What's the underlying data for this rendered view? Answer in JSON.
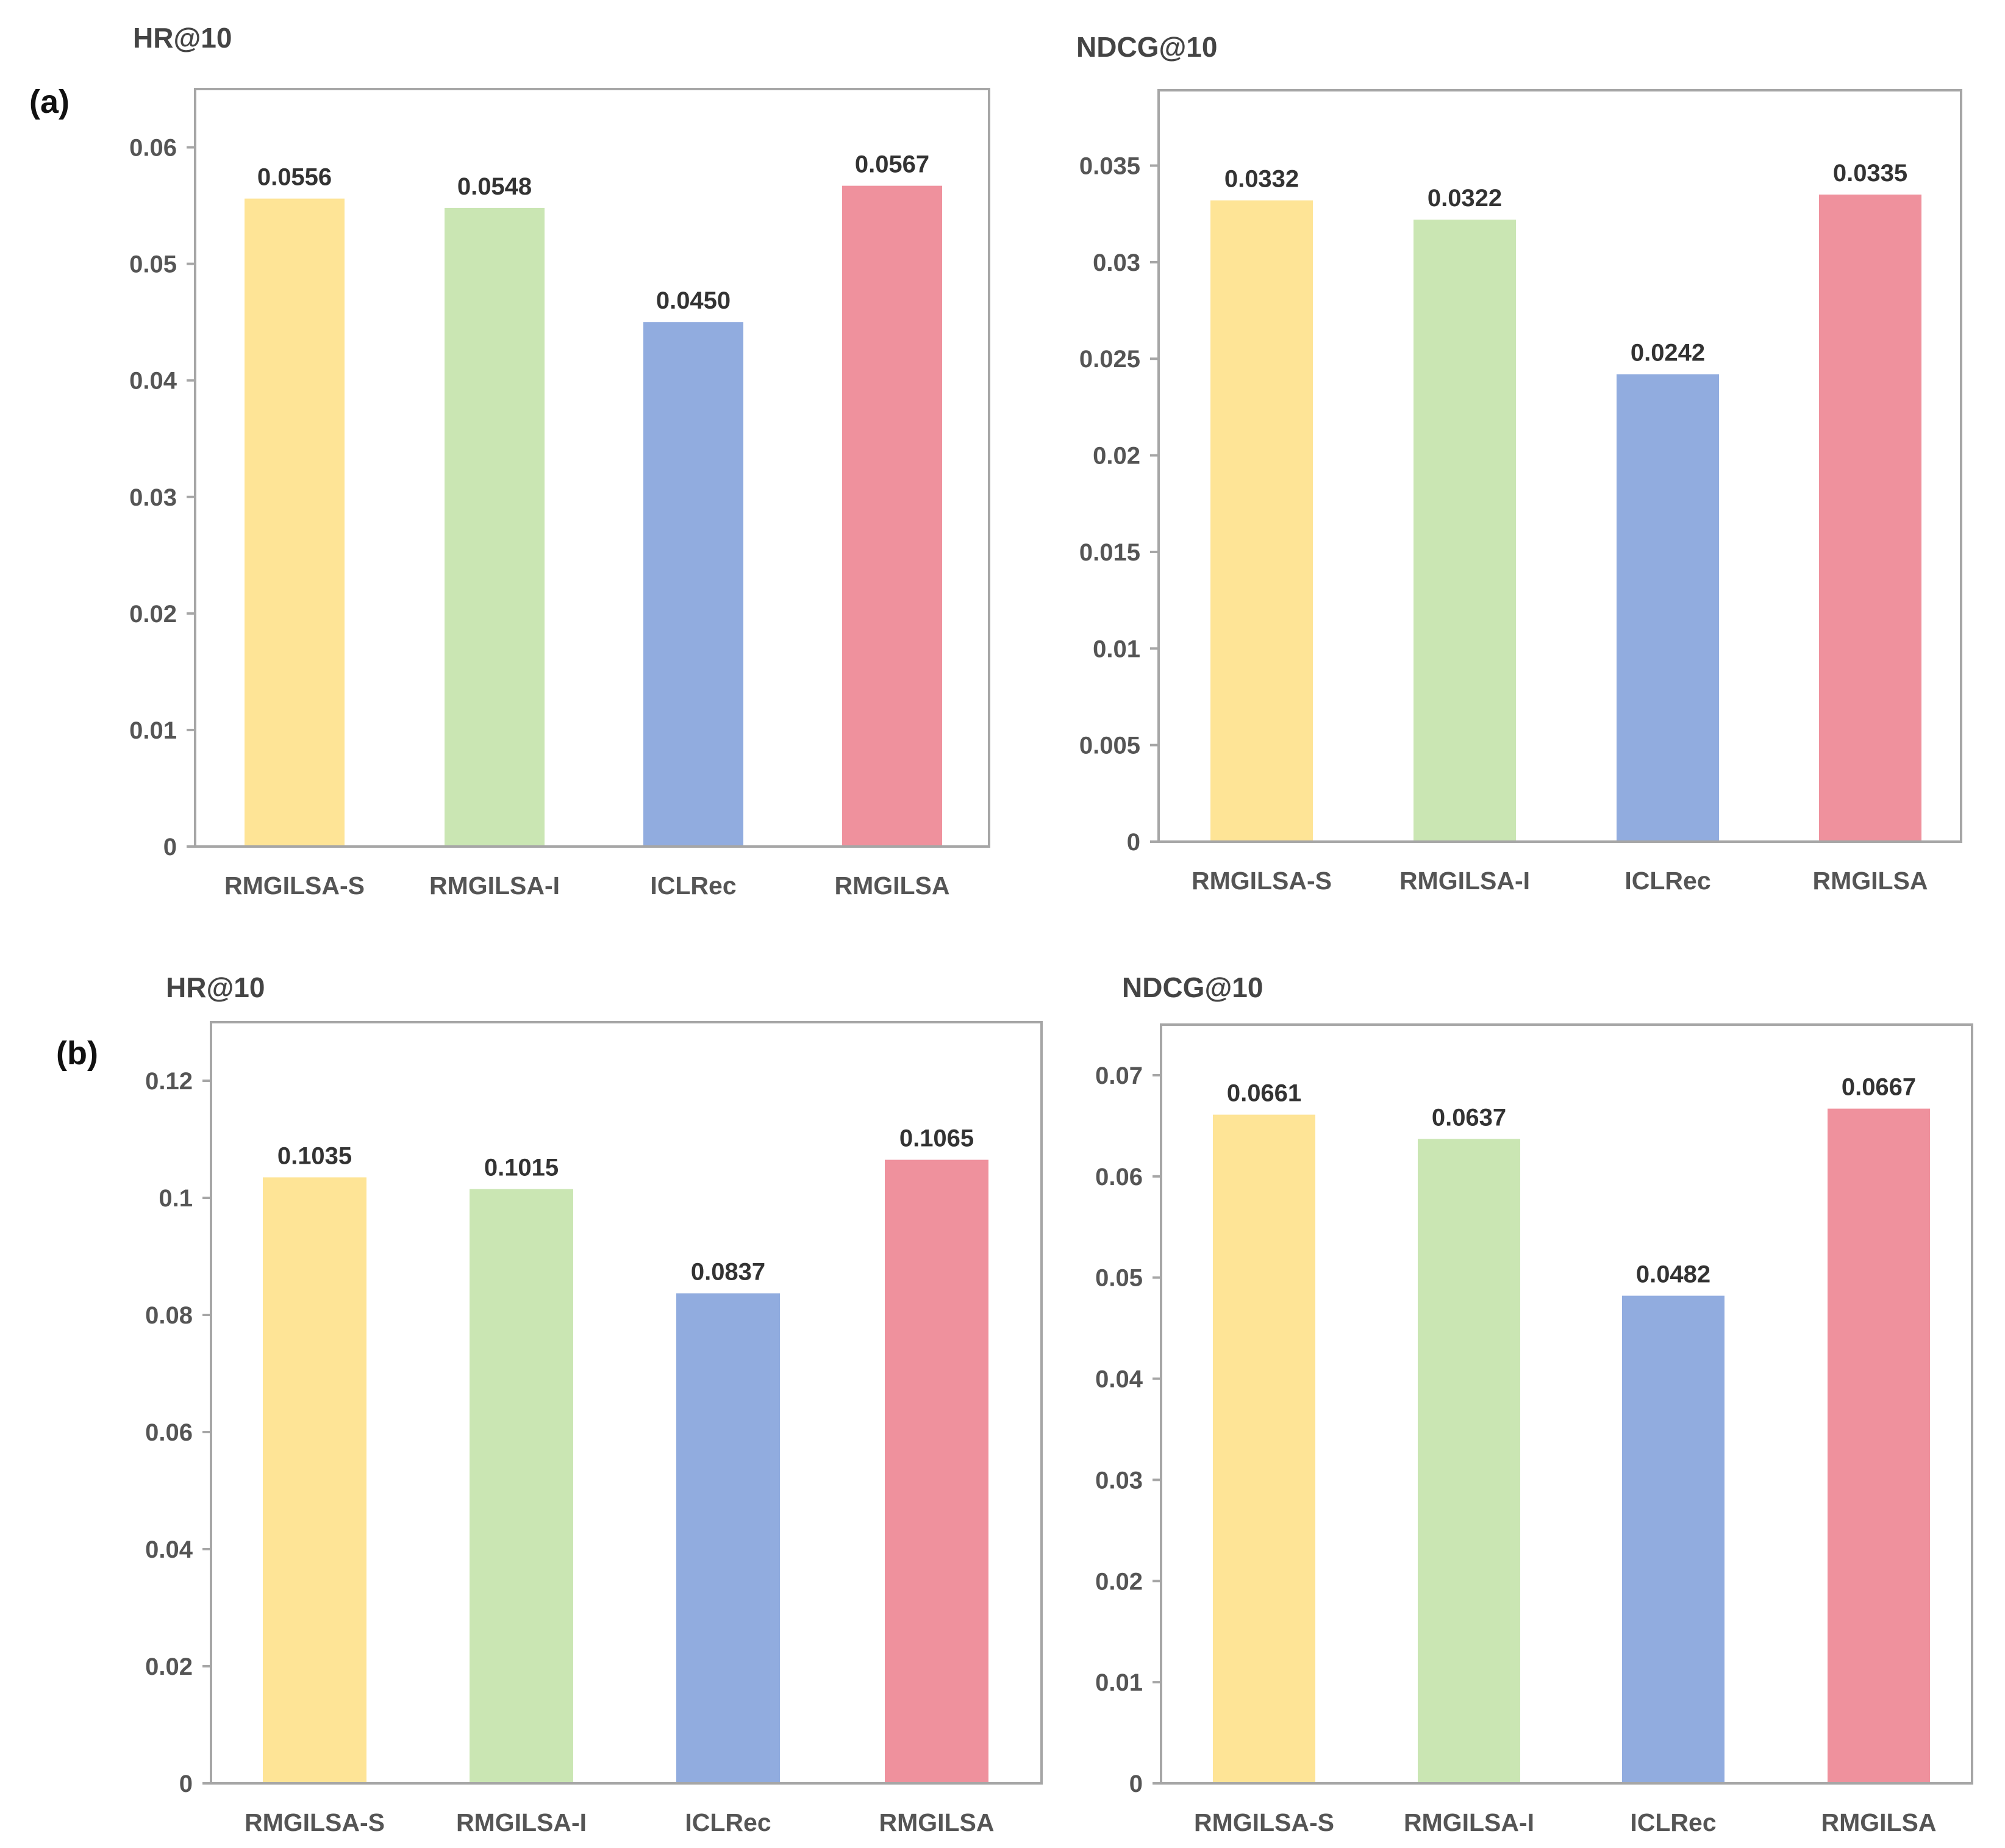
{
  "panels": [
    "(a)",
    "(b)"
  ],
  "colors": [
    "#fee496",
    "#cae6b3",
    "#91acdf",
    "#ef919d"
  ],
  "chart_data": [
    {
      "type": "bar",
      "panel": "(a)",
      "title": "HR@10",
      "categories": [
        "RMGILSA-S",
        "RMGILSA-I",
        "ICLRec",
        "RMGILSA"
      ],
      "values": [
        0.0556,
        0.0548,
        0.045,
        0.0567
      ],
      "value_labels": [
        "0.0556",
        "0.0548",
        "0.0450",
        "0.0567"
      ],
      "ylim": [
        0,
        0.065
      ],
      "yticks": [
        0,
        0.01,
        0.02,
        0.03,
        0.04,
        0.05,
        0.06
      ],
      "ytick_labels": [
        "0",
        "0.01",
        "0.02",
        "0.03",
        "0.04",
        "0.05",
        "0.06"
      ],
      "xlabel": "",
      "ylabel": "",
      "grid": false
    },
    {
      "type": "bar",
      "panel": "(a)",
      "title": "NDCG@10",
      "categories": [
        "RMGILSA-S",
        "RMGILSA-I",
        "ICLRec",
        "RMGILSA"
      ],
      "values": [
        0.0332,
        0.0322,
        0.0242,
        0.0335
      ],
      "value_labels": [
        "0.0332",
        "0.0322",
        "0.0242",
        "0.0335"
      ],
      "ylim": [
        0,
        0.0389
      ],
      "yticks": [
        0,
        0.005,
        0.01,
        0.015,
        0.02,
        0.025,
        0.03,
        0.035
      ],
      "ytick_labels": [
        "0",
        "0.005",
        "0.01",
        "0.015",
        "0.02",
        "0.025",
        "0.03",
        "0.035"
      ],
      "xlabel": "",
      "ylabel": "",
      "grid": false
    },
    {
      "type": "bar",
      "panel": "(b)",
      "title": "HR@10",
      "categories": [
        "RMGILSA-S",
        "RMGILSA-I",
        "ICLRec",
        "RMGILSA"
      ],
      "values": [
        0.1035,
        0.1015,
        0.0837,
        0.1065
      ],
      "value_labels": [
        "0.1035",
        "0.1015",
        "0.0837",
        "0.1065"
      ],
      "ylim": [
        0,
        0.13
      ],
      "yticks": [
        0,
        0.02,
        0.04,
        0.06,
        0.08,
        0.1,
        0.12
      ],
      "ytick_labels": [
        "0",
        "0.02",
        "0.04",
        "0.06",
        "0.08",
        "0.1",
        "0.12"
      ],
      "xlabel": "",
      "ylabel": "",
      "grid": false
    },
    {
      "type": "bar",
      "panel": "(b)",
      "title": "NDCG@10",
      "categories": [
        "RMGILSA-S",
        "RMGILSA-I",
        "ICLRec",
        "RMGILSA"
      ],
      "values": [
        0.0661,
        0.0637,
        0.0482,
        0.0667
      ],
      "value_labels": [
        "0.0661",
        "0.0637",
        "0.0482",
        "0.0667"
      ],
      "ylim": [
        0,
        0.075
      ],
      "yticks": [
        0,
        0.01,
        0.02,
        0.03,
        0.04,
        0.05,
        0.06,
        0.07
      ],
      "ytick_labels": [
        "0",
        "0.01",
        "0.02",
        "0.03",
        "0.04",
        "0.05",
        "0.06",
        "0.07"
      ],
      "xlabel": "",
      "ylabel": "",
      "grid": false
    }
  ]
}
